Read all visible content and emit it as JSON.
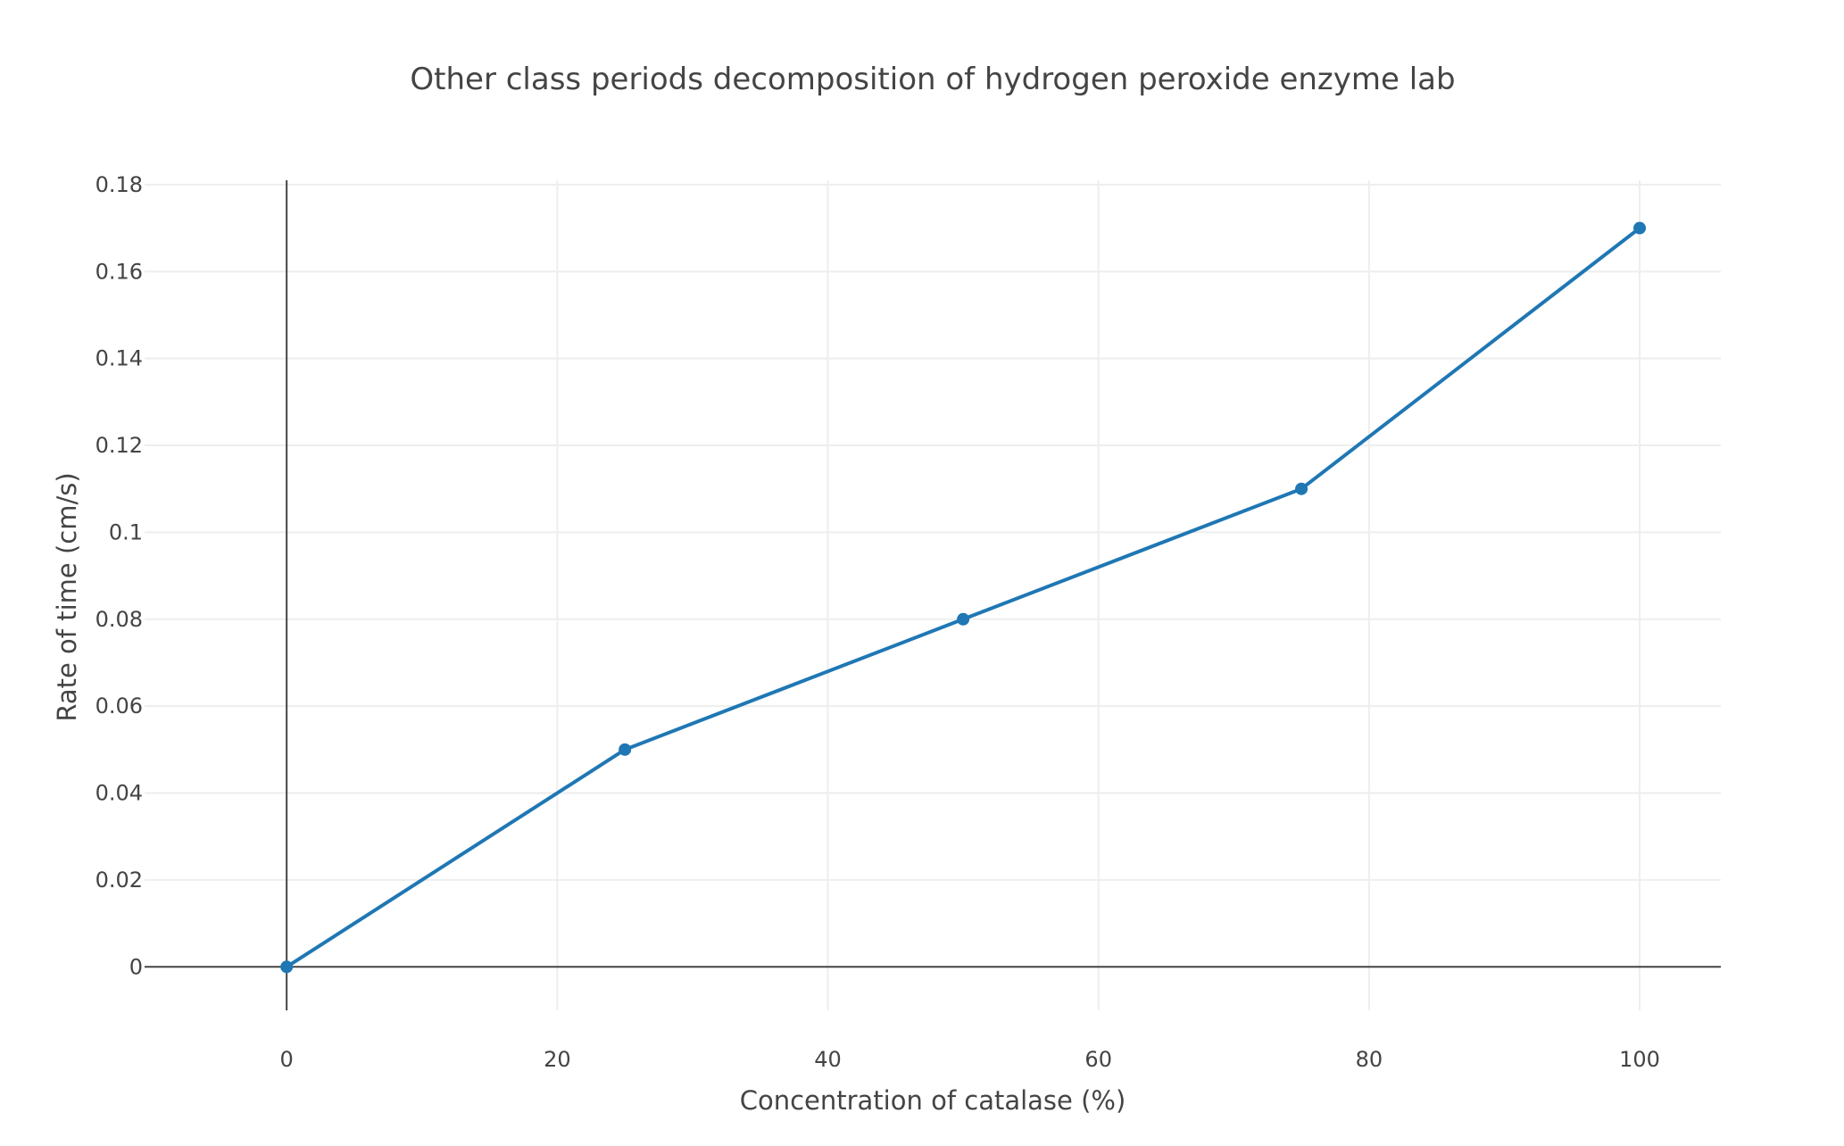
{
  "chart_data": {
    "type": "line",
    "title": "Other class periods decomposition of hydrogen peroxide enzyme lab",
    "xlabel": "Concentration of catalase (%)",
    "ylabel": "Rate of time (cm/s)",
    "xlim": [
      -10.5,
      106
    ],
    "ylim": [
      -0.01,
      0.181
    ],
    "xticks": [
      0,
      20,
      40,
      60,
      80,
      100
    ],
    "xtick_labels": [
      "0",
      "20",
      "40",
      "60",
      "80",
      "100"
    ],
    "yticks": [
      0,
      0.02,
      0.04,
      0.06,
      0.08,
      0.1,
      0.12,
      0.14,
      0.16,
      0.18
    ],
    "ytick_labels": [
      "0",
      "0.02",
      "0.04",
      "0.06",
      "0.08",
      "0.1",
      "0.12",
      "0.14",
      "0.16",
      "0.18"
    ],
    "grid": true,
    "series": [
      {
        "x": [
          0,
          25,
          50,
          75,
          100
        ],
        "y": [
          0,
          0.05,
          0.08,
          0.11,
          0.17
        ],
        "color": "#1f77b4",
        "mode": "lines+markers"
      }
    ]
  }
}
